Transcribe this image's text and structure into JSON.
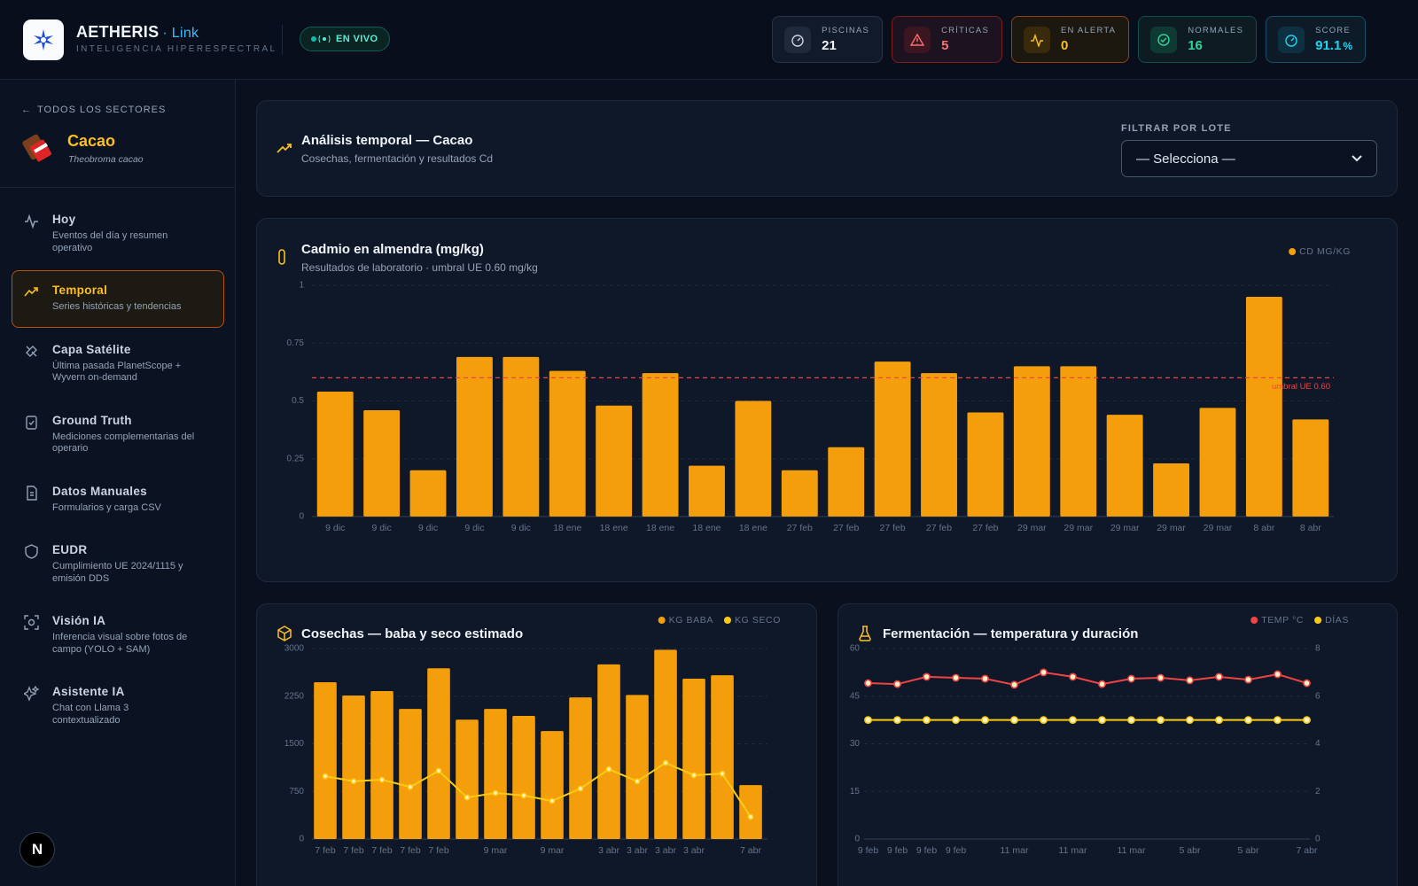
{
  "header": {
    "brand": "AETHERIS",
    "brand_suffix": "· Link",
    "tagline": "INTELIGENCIA HIPERESPECTRAL",
    "status": "EN VIVO",
    "stats": [
      {
        "label": "PISCINAS",
        "value": 21
      },
      {
        "label": "CRÍTICAS",
        "value": 5
      },
      {
        "label": "EN ALERTA",
        "value": 0
      },
      {
        "label": "NORMALES",
        "value": 16
      },
      {
        "label": "SCORE",
        "value": 91.1,
        "unit": "%"
      }
    ]
  },
  "sidebar": {
    "back": "TODOS LOS SECTORES",
    "sector": "Cacao",
    "species": "Theobroma cacao",
    "badge": "N",
    "nav": [
      {
        "title": "Hoy",
        "subtitle": "Eventos del día y resumen operativo"
      },
      {
        "title": "Temporal",
        "subtitle": "Series históricas y tendencias"
      },
      {
        "title": "Capa Satélite",
        "subtitle": "Última pasada PlanetScope + Wyvern on-demand"
      },
      {
        "title": "Ground Truth",
        "subtitle": "Mediciones complementarias del operario"
      },
      {
        "title": "Datos Manuales",
        "subtitle": "Formularios y carga CSV"
      },
      {
        "title": "EUDR",
        "subtitle": "Cumplimiento UE 2024/1115 y emisión DDS"
      },
      {
        "title": "Visión IA",
        "subtitle": "Inferencia visual sobre fotos de campo (YOLO + SAM)"
      },
      {
        "title": "Asistente IA",
        "subtitle": "Chat con Llama 3 contextualizado"
      }
    ]
  },
  "panel": {
    "title": "Análisis temporal — Cacao",
    "subtitle": "Cosechas, fermentación y resultados Cd",
    "filter_label": "FILTRAR POR LOTE",
    "filter_placeholder": "— Selecciona —"
  },
  "chart_data": [
    {
      "type": "bar",
      "title": "Cadmio en almendra (mg/kg)",
      "subtitle": "Resultados de laboratorio · umbral UE 0.60 mg/kg",
      "categories": [
        "9 dic",
        "9 dic",
        "9 dic",
        "9 dic",
        "9 dic",
        "18 ene",
        "18 ene",
        "18 ene",
        "18 ene",
        "18 ene",
        "27 feb",
        "27 feb",
        "27 feb",
        "27 feb",
        "27 feb",
        "29 mar",
        "29 mar",
        "29 mar",
        "29 mar",
        "29 mar",
        "8 abr",
        "8 abr"
      ],
      "series": [
        {
          "name": "CD MG/KG",
          "color": "#f59e0b",
          "values": [
            0.54,
            0.46,
            0.2,
            0.69,
            0.69,
            0.63,
            0.48,
            0.62,
            0.22,
            0.5,
            0.2,
            0.3,
            0.67,
            0.62,
            0.45,
            0.65,
            0.65,
            0.44,
            0.23,
            0.47,
            0.95,
            0.42
          ]
        }
      ],
      "ylim": [
        0,
        1
      ],
      "yticks": [
        0,
        0.25,
        0.5,
        0.75,
        1
      ],
      "grid": true,
      "legend": "top-right",
      "threshold": {
        "value": 0.6,
        "label": "umbral UE 0.60",
        "color": "#ef4444"
      }
    },
    {
      "type": "combo",
      "title": "Cosechas — baba y seco estimado",
      "categories": [
        "7 feb",
        "7 feb",
        "7 feb",
        "7 feb",
        "7 feb",
        null,
        "9 mar",
        null,
        "9 mar",
        null,
        "3 abr",
        "3 abr",
        "3 abr",
        "3 abr",
        null,
        "7 abr"
      ],
      "series": [
        {
          "name": "KG BABA",
          "type": "bar",
          "color": "#f59e0b",
          "values": [
            2470,
            2260,
            2330,
            2050,
            2690,
            1880,
            2050,
            1940,
            1700,
            2230,
            2750,
            2270,
            2980,
            2525,
            2580,
            850
          ]
        },
        {
          "name": "KG SECO",
          "type": "line",
          "color": "#facc15",
          "values": [
            990,
            910,
            935,
            820,
            1075,
            655,
            725,
            685,
            600,
            795,
            1100,
            910,
            1200,
            1005,
            1030,
            350
          ]
        }
      ],
      "ylim": [
        0,
        3000
      ],
      "yticks": [
        0,
        750,
        1500,
        2250,
        3000
      ],
      "grid": true,
      "legend": "top-right"
    },
    {
      "type": "line",
      "title": "Fermentación — temperatura y duración",
      "categories": [
        "9 feb",
        "9 feb",
        "9 feb",
        "9 feb",
        null,
        "11 mar",
        null,
        "11 mar",
        null,
        "11 mar",
        null,
        "5 abr",
        null,
        "5 abr",
        null,
        "7 abr"
      ],
      "series": [
        {
          "name": "TEMP °C",
          "color": "#ef4444",
          "values": [
            49.1,
            48.8,
            51.1,
            50.8,
            50.5,
            48.6,
            52.5,
            51.1,
            48.8,
            50.5,
            50.8,
            50,
            51.1,
            50.2,
            51.9,
            49.1
          ]
        },
        {
          "name": "DÍAS",
          "color": "#facc15",
          "axis": "y2",
          "values": [
            5,
            5,
            5,
            5,
            5,
            5,
            5,
            5,
            5,
            5,
            5,
            5,
            5,
            5,
            5,
            5
          ]
        }
      ],
      "ylim": [
        0,
        60
      ],
      "yticks": [
        0,
        15,
        30,
        45,
        60
      ],
      "y2lim": [
        0,
        8
      ],
      "y2ticks": [
        0,
        2,
        4,
        6,
        8
      ],
      "grid": true,
      "legend": "top-right"
    }
  ]
}
